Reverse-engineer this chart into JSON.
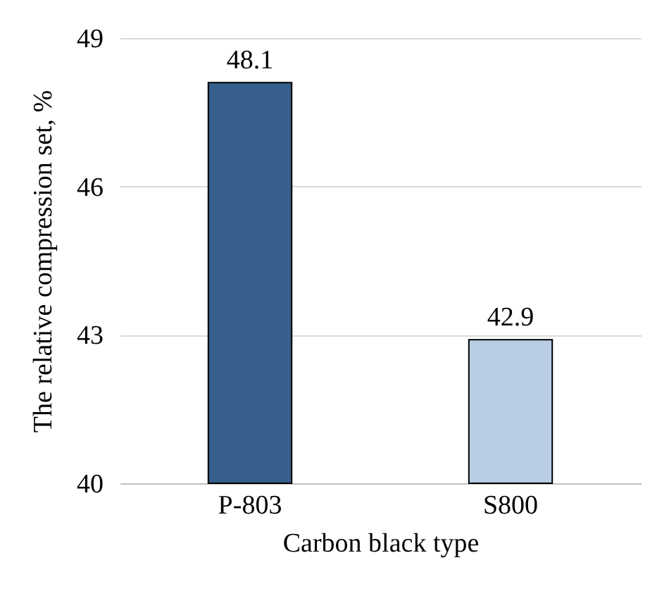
{
  "chart_data": {
    "type": "bar",
    "categories": [
      "P-803",
      "S800"
    ],
    "values": [
      48.1,
      42.9
    ],
    "colors": [
      "#365f8c",
      "#b8cce4"
    ],
    "xlabel": "Carbon black type",
    "ylabel": "The relative compression set, %",
    "ylim": [
      40,
      49
    ],
    "yticks": [
      40,
      43,
      46,
      49
    ],
    "grid": "y",
    "data_labels": true
  }
}
